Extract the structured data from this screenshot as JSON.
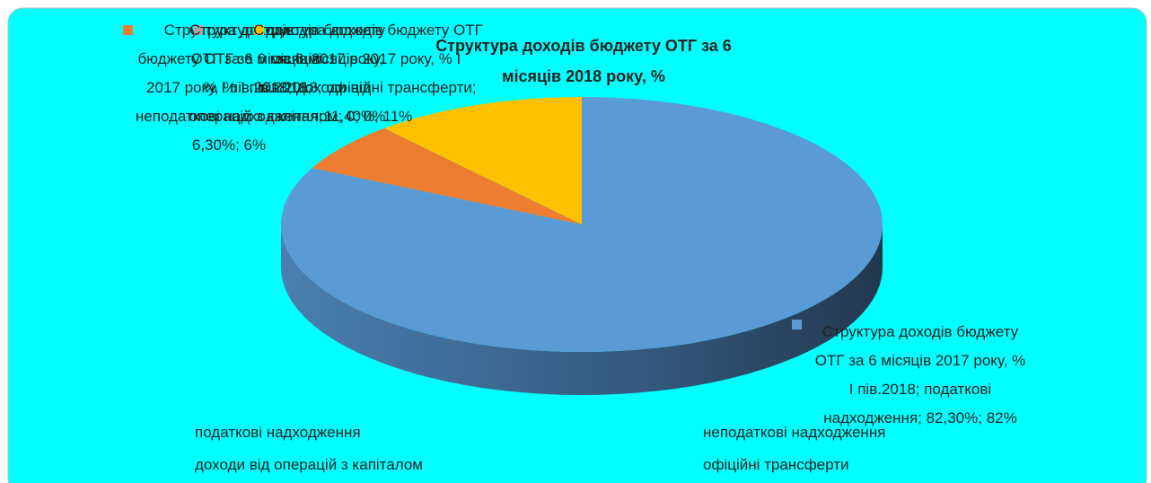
{
  "chart_data": {
    "type": "pie",
    "title": "Структура доходів бюджету ОТГ за 6 місяців 2018 року, %",
    "categories": [
      "податкові надходження",
      "неподаткові надходження",
      "доходи від операцій з капіталом",
      "офіційні трансферти"
    ],
    "values": [
      82.3,
      6.3,
      0,
      11.4
    ],
    "value_labels": [
      "Структура доходів бюджету ОТГ за 6 місяців 2017 року, % І пів.2018; податкові надходження; 82,30%; 82%",
      "Структура доходів бюджету ОТГ за 6 місяців 2017 року, % І пів.2018; неподаткові надходження; 6,30%; 6%",
      "Структура доходів бюджету ОТГ за 6 місяців 2017 року, % І пів.2018; доходи від операцій з капіталом; 0; 0%",
      "Структура доходів бюджету ОТГ за 6 місяців 2017 року, % І пів.2018; офіційні трансферти; 11,40%; 11%"
    ],
    "colors": [
      "#5b9bd5",
      "#ed7d31",
      "#a5a5a5",
      "#ffc000"
    ],
    "legend": "bottom"
  }
}
